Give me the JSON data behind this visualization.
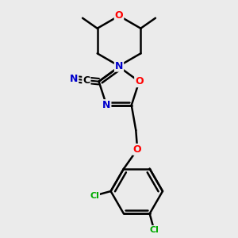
{
  "background_color": "#ebebeb",
  "bond_color": "#000000",
  "bond_width": 1.8,
  "atom_colors": {
    "O": "#ff0000",
    "N": "#0000cc",
    "Cl": "#00aa00",
    "C": "#000000"
  },
  "font_size_atoms": 9,
  "font_size_small": 8
}
